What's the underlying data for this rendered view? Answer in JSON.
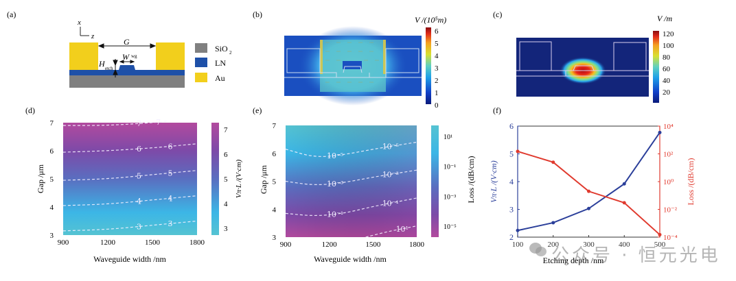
{
  "panels": {
    "a": {
      "label": "(a)",
      "axis_x": "x",
      "axis_z": "z",
      "dim_gap": "G",
      "dim_wwg": "W",
      "dim_wwg_sub": "wg",
      "dim_hetch": "H",
      "dim_hetch_sub": "etch",
      "legend": [
        {
          "name": "SiO",
          "sub": "2",
          "color": "#808080"
        },
        {
          "name": "LN",
          "sub": "",
          "color": "#1e50a8"
        },
        {
          "name": "Au",
          "sub": "",
          "color": "#f2cf1c"
        }
      ]
    },
    "b": {
      "label": "(b)",
      "colorbar_title": "V /(10⁵m)",
      "colorbar_ticks": [
        "6",
        "5",
        "4",
        "3",
        "2",
        "1",
        "0"
      ]
    },
    "c": {
      "label": "(c)",
      "colorbar_title": "V /m",
      "colorbar_ticks": [
        "120",
        "100",
        "80",
        "60",
        "40",
        "20"
      ]
    }
  },
  "chart_data": [
    {
      "panel": "(d)",
      "type": "heatmap",
      "title": "",
      "xlabel": "Waveguide width /nm",
      "ylabel": "Gap /μm",
      "xlim": [
        900,
        1800
      ],
      "ylim": [
        3,
        7
      ],
      "xticks": [
        "900",
        "1200",
        "1500",
        "1800"
      ],
      "yticks": [
        "3",
        "4",
        "5",
        "6",
        "7"
      ],
      "colorbar_label": "Vπ·L /(V·cm)",
      "colorbar_ticks": [
        "7",
        "6",
        "5",
        "4",
        "3"
      ],
      "colorbar_range": [
        2.5,
        7.2
      ],
      "contours": [
        {
          "level": "3",
          "points": [
            [
              900,
              3.15
            ],
            [
              1200,
              3.2
            ],
            [
              1500,
              3.35
            ],
            [
              1800,
              3.5
            ]
          ]
        },
        {
          "level": "4",
          "points": [
            [
              900,
              4.05
            ],
            [
              1200,
              4.1
            ],
            [
              1500,
              4.25
            ],
            [
              1800,
              4.4
            ]
          ]
        },
        {
          "level": "5",
          "points": [
            [
              900,
              4.95
            ],
            [
              1200,
              5.0
            ],
            [
              1500,
              5.15
            ],
            [
              1800,
              5.3
            ]
          ]
        },
        {
          "level": "6",
          "points": [
            [
              900,
              5.95
            ],
            [
              1200,
              6.0
            ],
            [
              1500,
              6.1
            ],
            [
              1800,
              6.25
            ]
          ]
        },
        {
          "level": "7",
          "points": [
            [
              900,
              6.9
            ],
            [
              1200,
              6.9
            ],
            [
              1500,
              7.0
            ],
            [
              1600,
              7.05
            ]
          ]
        }
      ]
    },
    {
      "panel": "(e)",
      "type": "heatmap",
      "title": "",
      "xlabel": "Waveguide width /nm",
      "ylabel": "Gap /μm",
      "xlim": [
        900,
        1800
      ],
      "ylim": [
        3,
        7
      ],
      "xticks": [
        "900",
        "1200",
        "1500",
        "1800"
      ],
      "yticks": [
        "3",
        "4",
        "5",
        "6",
        "7"
      ],
      "colorbar_label": "Loss /(dB/cm)",
      "colorbar_ticks": [
        "10¹",
        "10⁻¹",
        "10⁻³",
        "10⁻⁵"
      ],
      "colorbar_scale": "log",
      "contours": [
        {
          "level": "10⁻⁵",
          "points": [
            [
              900,
              6.15
            ],
            [
              1100,
              5.85
            ],
            [
              1300,
              5.95
            ],
            [
              1500,
              6.15
            ],
            [
              1800,
              6.4
            ]
          ]
        },
        {
          "level": "10⁻³",
          "points": [
            [
              900,
              5.0
            ],
            [
              1100,
              4.85
            ],
            [
              1300,
              4.95
            ],
            [
              1500,
              5.15
            ],
            [
              1800,
              5.4
            ]
          ]
        },
        {
          "level": "10⁻¹",
          "points": [
            [
              900,
              3.85
            ],
            [
              1100,
              3.75
            ],
            [
              1300,
              3.85
            ],
            [
              1500,
              4.1
            ],
            [
              1800,
              4.4
            ]
          ]
        },
        {
          "level": "10¹",
          "points": [
            [
              1450,
              3.0
            ],
            [
              1600,
              3.2
            ],
            [
              1800,
              3.4
            ]
          ]
        }
      ]
    },
    {
      "panel": "(f)",
      "type": "line",
      "title": "",
      "xlabel": "Etching depth /nm",
      "ylabel_left": "Vπ·L /(V·cm)",
      "ylabel_right": "Loss /(dB/cm)",
      "x": [
        100,
        200,
        300,
        400,
        500
      ],
      "xlim": [
        100,
        500
      ],
      "xticks": [
        "100",
        "200",
        "300",
        "400",
        "500"
      ],
      "ylim_left": [
        2,
        6
      ],
      "yticks_left": [
        "2",
        "3",
        "4",
        "5",
        "6"
      ],
      "ylim_right_log10": [
        -4,
        4
      ],
      "yticks_right": [
        "10⁻⁴",
        "10⁻²",
        "10⁰",
        "10²",
        "10⁴"
      ],
      "series": [
        {
          "name": "Vπ·L",
          "axis": "left",
          "color": "#2b3f9a",
          "values": [
            2.24,
            2.52,
            3.03,
            3.92,
            5.77
          ]
        },
        {
          "name": "Loss",
          "axis": "right",
          "scale": "log",
          "color": "#e03a2e",
          "values": [
            150,
            25,
            0.2,
            0.03,
            0.00015
          ]
        }
      ]
    }
  ],
  "watermark": "公众号 · 恒元光电"
}
